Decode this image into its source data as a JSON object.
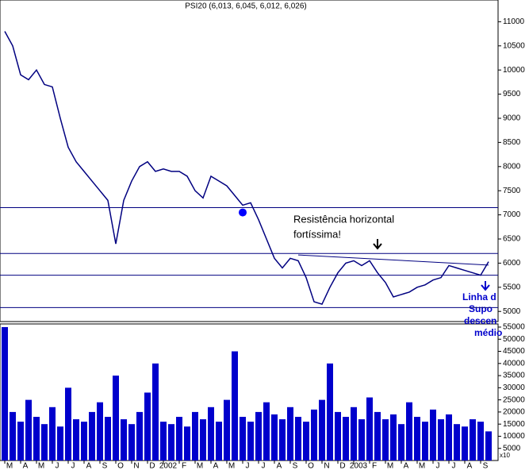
{
  "chart_data": [
    {
      "type": "line",
      "title": "PSI20 (6,013, 6,045, 6,012, 6,026)",
      "categories": [
        "M",
        null,
        "A",
        null,
        "M",
        null,
        "J",
        null,
        "J",
        null,
        "A",
        null,
        "S",
        null,
        "O",
        null,
        "N",
        null,
        "D",
        null,
        "2002",
        null,
        "F",
        null,
        "M",
        null,
        "A",
        null,
        "M",
        null,
        "J",
        null,
        "J",
        null,
        "A",
        null,
        "S",
        null,
        "O",
        null,
        "N",
        null,
        "D",
        null,
        "2003",
        null,
        "F",
        null,
        "M",
        null,
        "A",
        null,
        "M",
        null,
        "J",
        null,
        "J",
        null,
        "A",
        null,
        "S",
        null
      ],
      "series": [
        {
          "name": "PSI20",
          "color": "#000080",
          "values": [
            10800,
            10500,
            9900,
            9800,
            10000,
            9700,
            9650,
            9000,
            8400,
            8100,
            7900,
            7700,
            7500,
            7300,
            6400,
            7300,
            7700,
            8000,
            8100,
            7900,
            7950,
            7900,
            7900,
            7800,
            7500,
            7350,
            7800,
            7700,
            7600,
            7400,
            7200,
            7250,
            6900,
            6500,
            6100,
            5900,
            6100,
            6050,
            5700,
            5200,
            5150,
            5500,
            5800,
            6000,
            6050,
            5950,
            6050,
            5800,
            5600,
            5300,
            5350,
            5400,
            5500,
            5550,
            5650,
            5700,
            5950,
            5900,
            5850,
            5800,
            5750,
            6030
          ]
        }
      ],
      "ylim": [
        4790,
        11450
      ],
      "yticks": [
        5000,
        5500,
        6000,
        6500,
        7000,
        7500,
        8000,
        8500,
        9000,
        9500,
        10000,
        10500,
        11000
      ],
      "hlines": [
        7150,
        6200,
        5750,
        5080
      ],
      "hline_color": "#000080",
      "trendline": {
        "x": [
          37,
          61
        ],
        "y": [
          6170,
          5960
        ]
      },
      "marker": {
        "x": 30,
        "y": 7050,
        "color": "#0000ff"
      },
      "annotations": [
        "Resistência horizontal",
        "fortíssima!"
      ],
      "side_annotations": [
        "Linha d",
        "Supo",
        "descen",
        "médio"
      ]
    },
    {
      "type": "bar",
      "color": "#0000cc",
      "unit_label": "x10",
      "values": [
        55000,
        20000,
        16000,
        25000,
        18000,
        15000,
        22000,
        14000,
        30000,
        17000,
        16000,
        20000,
        24000,
        18000,
        35000,
        17000,
        15000,
        20000,
        28000,
        40000,
        16000,
        15000,
        18000,
        14000,
        20000,
        17000,
        22000,
        16000,
        25000,
        45000,
        18000,
        16000,
        20000,
        24000,
        19000,
        17000,
        22000,
        18000,
        16000,
        21000,
        25000,
        40000,
        20000,
        18000,
        22000,
        17000,
        26000,
        20000,
        17000,
        19000,
        15000,
        24000,
        18000,
        16000,
        21000,
        17000,
        19000,
        15000,
        14000,
        17000,
        16000,
        12000
      ],
      "ylim": [
        0,
        56300
      ],
      "yticks": [
        5000,
        10000,
        15000,
        20000,
        25000,
        30000,
        35000,
        40000,
        45000,
        50000,
        55000
      ]
    }
  ]
}
